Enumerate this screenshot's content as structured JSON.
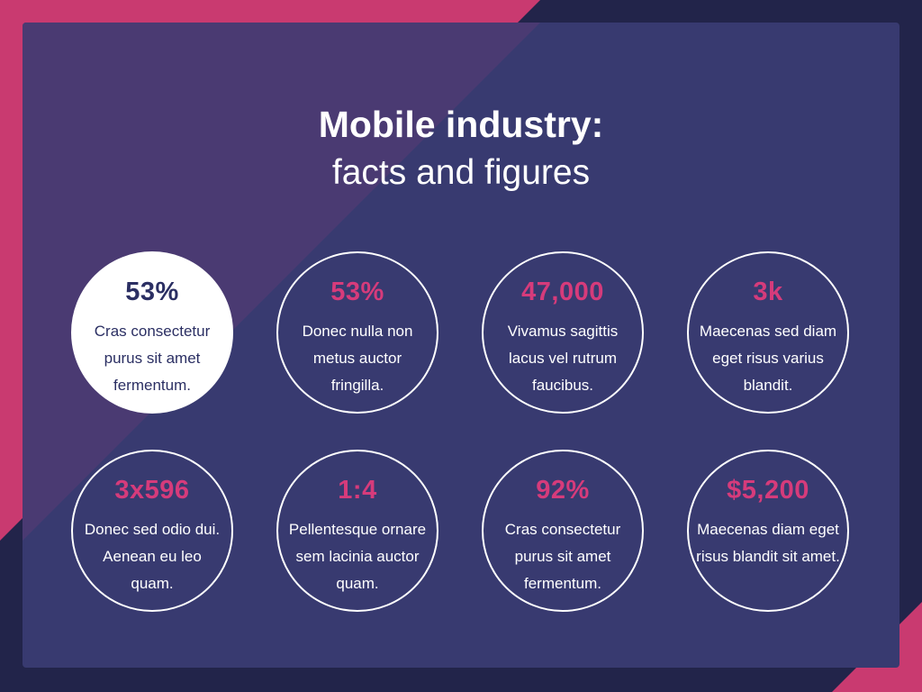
{
  "colors": {
    "background": "#22244a",
    "panel": "#383a70",
    "accent": "#c93a70",
    "highlight_text": "#2b2f63"
  },
  "title": {
    "line1": "Mobile industry:",
    "line2": "facts and figures"
  },
  "stats": [
    {
      "value": "53%",
      "description": "Cras consectetur purus sit amet fermentum.",
      "highlighted": true
    },
    {
      "value": "53%",
      "description": "Donec nulla non metus auctor fringilla.",
      "highlighted": false
    },
    {
      "value": "47,000",
      "description": "Vivamus sagittis lacus vel rutrum faucibus.",
      "highlighted": false
    },
    {
      "value": "3k",
      "description": "Maecenas sed diam eget risus varius blandit.",
      "highlighted": false
    },
    {
      "value": "3x596",
      "description": "Donec sed odio dui. Aenean eu leo quam.",
      "highlighted": false
    },
    {
      "value": "1:4",
      "description": "Pellentesque ornare sem lacinia auctor quam.",
      "highlighted": false
    },
    {
      "value": "92%",
      "description": "Cras consectetur purus sit amet fermentum.",
      "highlighted": false
    },
    {
      "value": "$5,200",
      "description": "Maecenas diam eget risus blandit sit amet.",
      "highlighted": false
    }
  ]
}
